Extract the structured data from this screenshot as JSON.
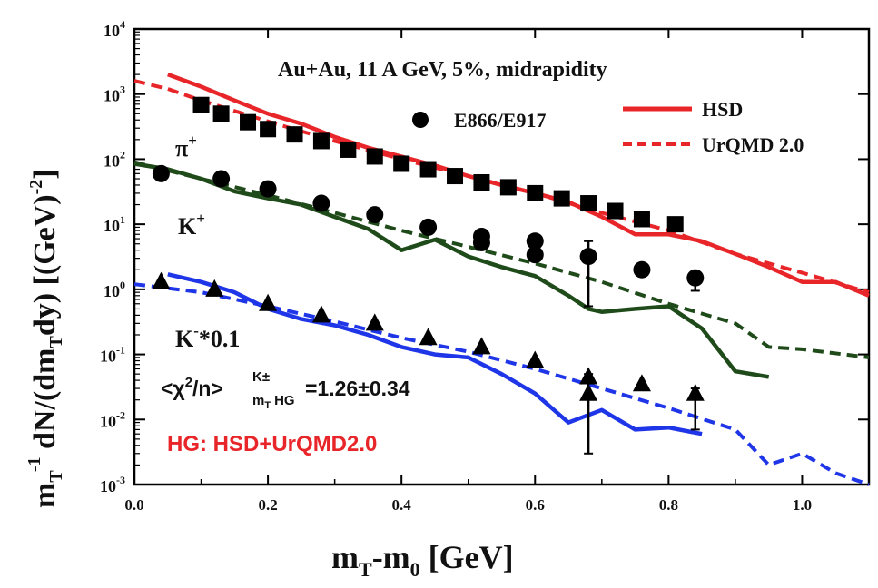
{
  "chart_data": {
    "type": "scatter",
    "title": "Au+Au, 11 A GeV, 5%, midrapidity",
    "xlabel_main": "m",
    "xlabel_sub1": "T",
    "xlabel_mid": "-m",
    "xlabel_sub2": "0",
    "xlabel_tail": " [GeV]",
    "ylabel": "m_T^-1 dN/(dm_T dy) [(GeV)^-2]",
    "xlim": [
      0.0,
      1.1
    ],
    "ylim": [
      0.001,
      10000
    ],
    "yscale": "log",
    "x_ticks": [
      {
        "value": 0.0,
        "label": "0.0"
      },
      {
        "value": 0.2,
        "label": "0.2"
      },
      {
        "value": 0.4,
        "label": "0.4"
      },
      {
        "value": 0.6,
        "label": "0.6"
      },
      {
        "value": 0.8,
        "label": "0.8"
      },
      {
        "value": 1.0,
        "label": "1.0"
      }
    ],
    "y_ticks": [
      {
        "exp": -3,
        "label": "10",
        "sup": "-3"
      },
      {
        "exp": -2,
        "label": "10",
        "sup": "-2"
      },
      {
        "exp": -1,
        "label": "10",
        "sup": "-1"
      },
      {
        "exp": 0,
        "label": "10",
        "sup": "0"
      },
      {
        "exp": 1,
        "label": "10",
        "sup": "1"
      },
      {
        "exp": 2,
        "label": "10",
        "sup": "2"
      },
      {
        "exp": 3,
        "label": "10",
        "sup": "3"
      },
      {
        "exp": 4,
        "label": "10",
        "sup": "4"
      }
    ],
    "legend": {
      "data_label": "E866/E917",
      "hsd_label": "HSD",
      "urqmd_label": "UrQMD 2.0",
      "placement": "top-right"
    },
    "species_labels": [
      {
        "text": "π",
        "sup": "+",
        "x": 0.07,
        "y": 70
      },
      {
        "text": "K",
        "sup": "+",
        "x": 0.07,
        "y": 7
      },
      {
        "text": "K",
        "sup": "-",
        "tail": "*0.1",
        "x": 0.07,
        "y": 0.2
      }
    ],
    "chi2": {
      "pre": "<χ",
      "sq": "2",
      "mid": "/n>",
      "sup": "K±",
      "sub": "m",
      "subsub": "T",
      "hg": "HG",
      "val": "=1.26±0.34"
    },
    "hg_text": "HG: HSD+UrQMD2.0",
    "colors": {
      "hsd_pi": "#e8262a",
      "urqmd_pi": "#e8262a",
      "kplus": "#1f4a1a",
      "kminus": "#1f35e8",
      "data": "#000000",
      "hg_text": "#e8262a"
    },
    "series": [
      {
        "key": "pi_data",
        "marker": "square",
        "points": [
          {
            "x": 0.1,
            "y": 680
          },
          {
            "x": 0.13,
            "y": 500
          },
          {
            "x": 0.17,
            "y": 370
          },
          {
            "x": 0.2,
            "y": 290
          },
          {
            "x": 0.24,
            "y": 240
          },
          {
            "x": 0.28,
            "y": 190
          },
          {
            "x": 0.32,
            "y": 140
          },
          {
            "x": 0.36,
            "y": 110
          },
          {
            "x": 0.4,
            "y": 85
          },
          {
            "x": 0.44,
            "y": 70
          },
          {
            "x": 0.48,
            "y": 55
          },
          {
            "x": 0.52,
            "y": 44
          },
          {
            "x": 0.56,
            "y": 37
          },
          {
            "x": 0.6,
            "y": 30
          },
          {
            "x": 0.64,
            "y": 25
          },
          {
            "x": 0.68,
            "y": 21
          },
          {
            "x": 0.72,
            "y": 16
          },
          {
            "x": 0.76,
            "y": 12
          },
          {
            "x": 0.81,
            "y": 10
          }
        ]
      },
      {
        "key": "kplus_data",
        "marker": "circle",
        "points": [
          {
            "x": 0.04,
            "y": 60
          },
          {
            "x": 0.13,
            "y": 50
          },
          {
            "x": 0.2,
            "y": 35
          },
          {
            "x": 0.28,
            "y": 21
          },
          {
            "x": 0.36,
            "y": 14
          },
          {
            "x": 0.44,
            "y": 9
          },
          {
            "x": 0.52,
            "y": 6.5
          },
          {
            "x": 0.52,
            "y": 5.2
          },
          {
            "x": 0.6,
            "y": 5.5
          },
          {
            "x": 0.6,
            "y": 3.4
          },
          {
            "x": 0.68,
            "y": 3.2
          },
          {
            "x": 0.76,
            "y": 2.0
          },
          {
            "x": 0.84,
            "y": 1.5
          }
        ]
      },
      {
        "key": "kminus_data",
        "marker": "triangle",
        "points": [
          {
            "x": 0.04,
            "y": 1.3
          },
          {
            "x": 0.12,
            "y": 1.0
          },
          {
            "x": 0.2,
            "y": 0.6
          },
          {
            "x": 0.28,
            "y": 0.4
          },
          {
            "x": 0.36,
            "y": 0.3
          },
          {
            "x": 0.44,
            "y": 0.18
          },
          {
            "x": 0.52,
            "y": 0.13
          },
          {
            "x": 0.6,
            "y": 0.08
          },
          {
            "x": 0.68,
            "y": 0.045
          },
          {
            "x": 0.68,
            "y": 0.025
          },
          {
            "x": 0.76,
            "y": 0.035
          },
          {
            "x": 0.84,
            "y": 0.025
          }
        ]
      },
      {
        "key": "pi_hsd",
        "name": "HSD",
        "style": "solid",
        "color": "#e8262a",
        "points": [
          {
            "x": 0.05,
            "y": 2000
          },
          {
            "x": 0.1,
            "y": 1300
          },
          {
            "x": 0.15,
            "y": 800
          },
          {
            "x": 0.2,
            "y": 500
          },
          {
            "x": 0.25,
            "y": 350
          },
          {
            "x": 0.3,
            "y": 220
          },
          {
            "x": 0.35,
            "y": 150
          },
          {
            "x": 0.4,
            "y": 110
          },
          {
            "x": 0.45,
            "y": 80
          },
          {
            "x": 0.5,
            "y": 55
          },
          {
            "x": 0.55,
            "y": 40
          },
          {
            "x": 0.6,
            "y": 30
          },
          {
            "x": 0.65,
            "y": 22
          },
          {
            "x": 0.7,
            "y": 13
          },
          {
            "x": 0.75,
            "y": 7
          },
          {
            "x": 0.8,
            "y": 7
          },
          {
            "x": 0.85,
            "y": 5.5
          },
          {
            "x": 0.9,
            "y": 3.5
          },
          {
            "x": 0.95,
            "y": 2.2
          },
          {
            "x": 1.0,
            "y": 1.3
          },
          {
            "x": 1.05,
            "y": 1.3
          },
          {
            "x": 1.1,
            "y": 0.8
          }
        ]
      },
      {
        "key": "pi_urqmd",
        "name": "UrQMD 2.0",
        "style": "dashed",
        "color": "#e8262a",
        "points": [
          {
            "x": 0.0,
            "y": 1600
          },
          {
            "x": 0.05,
            "y": 1200
          },
          {
            "x": 0.1,
            "y": 800
          },
          {
            "x": 0.2,
            "y": 380
          },
          {
            "x": 0.3,
            "y": 190
          },
          {
            "x": 0.4,
            "y": 100
          },
          {
            "x": 0.5,
            "y": 55
          },
          {
            "x": 0.6,
            "y": 30
          },
          {
            "x": 0.7,
            "y": 15
          },
          {
            "x": 0.8,
            "y": 8
          },
          {
            "x": 0.9,
            "y": 3.5
          },
          {
            "x": 1.0,
            "y": 1.8
          },
          {
            "x": 1.1,
            "y": 0.9
          }
        ]
      },
      {
        "key": "kplus_hsd",
        "style": "solid",
        "color": "#1f4a1a",
        "points": [
          {
            "x": 0.0,
            "y": 85
          },
          {
            "x": 0.05,
            "y": 70
          },
          {
            "x": 0.1,
            "y": 50
          },
          {
            "x": 0.15,
            "y": 32
          },
          {
            "x": 0.2,
            "y": 25
          },
          {
            "x": 0.25,
            "y": 20
          },
          {
            "x": 0.3,
            "y": 13
          },
          {
            "x": 0.35,
            "y": 8.5
          },
          {
            "x": 0.4,
            "y": 4
          },
          {
            "x": 0.45,
            "y": 5.8
          },
          {
            "x": 0.5,
            "y": 3.2
          },
          {
            "x": 0.55,
            "y": 2.2
          },
          {
            "x": 0.6,
            "y": 1.6
          },
          {
            "x": 0.65,
            "y": 0.8
          },
          {
            "x": 0.68,
            "y": 0.5
          },
          {
            "x": 0.7,
            "y": 0.45
          },
          {
            "x": 0.75,
            "y": 0.5
          },
          {
            "x": 0.8,
            "y": 0.55
          },
          {
            "x": 0.85,
            "y": 0.25
          },
          {
            "x": 0.9,
            "y": 0.055
          },
          {
            "x": 0.95,
            "y": 0.045
          }
        ]
      },
      {
        "key": "kplus_urqmd",
        "style": "dashed",
        "color": "#1f4a1a",
        "points": [
          {
            "x": 0.0,
            "y": 90
          },
          {
            "x": 0.1,
            "y": 50
          },
          {
            "x": 0.2,
            "y": 28
          },
          {
            "x": 0.3,
            "y": 15
          },
          {
            "x": 0.4,
            "y": 8
          },
          {
            "x": 0.5,
            "y": 4.5
          },
          {
            "x": 0.6,
            "y": 2.5
          },
          {
            "x": 0.7,
            "y": 1.3
          },
          {
            "x": 0.8,
            "y": 0.6
          },
          {
            "x": 0.9,
            "y": 0.3
          },
          {
            "x": 0.95,
            "y": 0.13
          },
          {
            "x": 1.0,
            "y": 0.12
          },
          {
            "x": 1.1,
            "y": 0.09
          }
        ]
      },
      {
        "key": "kminus_hsd",
        "style": "solid",
        "color": "#1f35e8",
        "points": [
          {
            "x": 0.05,
            "y": 1.7
          },
          {
            "x": 0.1,
            "y": 1.3
          },
          {
            "x": 0.15,
            "y": 0.9
          },
          {
            "x": 0.2,
            "y": 0.5
          },
          {
            "x": 0.25,
            "y": 0.35
          },
          {
            "x": 0.3,
            "y": 0.28
          },
          {
            "x": 0.35,
            "y": 0.2
          },
          {
            "x": 0.4,
            "y": 0.13
          },
          {
            "x": 0.45,
            "y": 0.1
          },
          {
            "x": 0.5,
            "y": 0.09
          },
          {
            "x": 0.55,
            "y": 0.05
          },
          {
            "x": 0.6,
            "y": 0.025
          },
          {
            "x": 0.65,
            "y": 0.009
          },
          {
            "x": 0.7,
            "y": 0.014
          },
          {
            "x": 0.75,
            "y": 0.007
          },
          {
            "x": 0.8,
            "y": 0.0075
          },
          {
            "x": 0.85,
            "y": 0.006
          }
        ]
      },
      {
        "key": "kminus_urqmd",
        "style": "dashed",
        "color": "#1f35e8",
        "points": [
          {
            "x": 0.0,
            "y": 1.2
          },
          {
            "x": 0.1,
            "y": 0.9
          },
          {
            "x": 0.2,
            "y": 0.55
          },
          {
            "x": 0.3,
            "y": 0.32
          },
          {
            "x": 0.4,
            "y": 0.18
          },
          {
            "x": 0.5,
            "y": 0.11
          },
          {
            "x": 0.6,
            "y": 0.06
          },
          {
            "x": 0.7,
            "y": 0.03
          },
          {
            "x": 0.8,
            "y": 0.015
          },
          {
            "x": 0.9,
            "y": 0.007
          },
          {
            "x": 0.95,
            "y": 0.002
          },
          {
            "x": 1.0,
            "y": 0.003
          },
          {
            "x": 1.05,
            "y": 0.0015
          },
          {
            "x": 1.1,
            "y": 0.001
          }
        ]
      }
    ],
    "error_bars": [
      {
        "x": 0.68,
        "y": 3.2,
        "lo": 0.55,
        "hi": 5.5
      },
      {
        "x": 0.84,
        "y": 1.5,
        "lo": 0.95,
        "hi": 1.9
      },
      {
        "x": 0.68,
        "y": 0.025,
        "lo": 0.003,
        "hi": 0.05
      },
      {
        "x": 0.84,
        "y": 0.025,
        "lo": 0.007,
        "hi": 0.03
      }
    ]
  }
}
